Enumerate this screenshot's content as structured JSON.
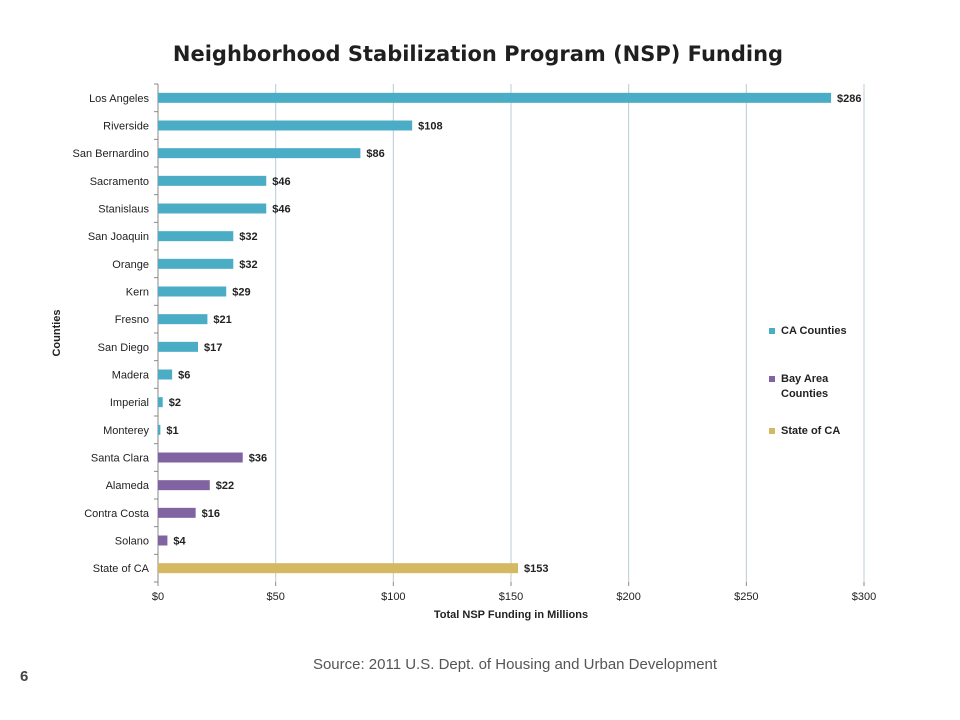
{
  "slide": {
    "source_text": "Source:  2011 U.S. Dept. of Housing and Urban Development",
    "page_number": "6"
  },
  "chart_data": {
    "type": "bar",
    "orientation": "horizontal",
    "title": "Neighborhood Stabilization Program (NSP) Funding",
    "xlabel": "Total NSP Funding in Millions",
    "ylabel": "Counties",
    "xlim": [
      0,
      300
    ],
    "x_ticks": [
      "$0",
      "$50",
      "$100",
      "$150",
      "$200",
      "$250",
      "$300"
    ],
    "grid": "vertical",
    "legend_position": "right",
    "categories": [
      "Los Angeles",
      "Riverside",
      "San Bernardino",
      "Sacramento",
      "Stanislaus",
      "San Joaquin",
      "Orange",
      "Kern",
      "Fresno",
      "San Diego",
      "Madera",
      "Imperial",
      "Monterey",
      "Santa Clara",
      "Alameda",
      "Contra Costa",
      "Solano",
      "State of CA"
    ],
    "values": [
      286,
      108,
      86,
      46,
      46,
      32,
      32,
      29,
      21,
      17,
      6,
      2,
      1,
      36,
      22,
      16,
      4,
      153
    ],
    "data_labels": [
      "$286",
      "$108",
      "$86",
      "$46",
      "$46",
      "$32",
      "$32",
      "$29",
      "$21",
      "$17",
      "$6",
      "$2",
      "$1",
      "$36",
      "$22",
      "$16",
      "$4",
      "$153"
    ],
    "groups": [
      "CA Counties",
      "CA Counties",
      "CA Counties",
      "CA Counties",
      "CA Counties",
      "CA Counties",
      "CA Counties",
      "CA Counties",
      "CA Counties",
      "CA Counties",
      "CA Counties",
      "CA Counties",
      "CA Counties",
      "Bay Area Counties",
      "Bay Area Counties",
      "Bay Area Counties",
      "Bay Area Counties",
      "State of CA"
    ],
    "legend": [
      {
        "name": "CA Counties",
        "lines": [
          "CA Counties"
        ],
        "color": "#4bacc6"
      },
      {
        "name": "Bay Area Counties",
        "lines": [
          "Bay Area",
          "Counties"
        ],
        "color": "#8064a2"
      },
      {
        "name": "State of CA",
        "lines": [
          "State of CA"
        ],
        "color": "#d4b862"
      }
    ]
  }
}
